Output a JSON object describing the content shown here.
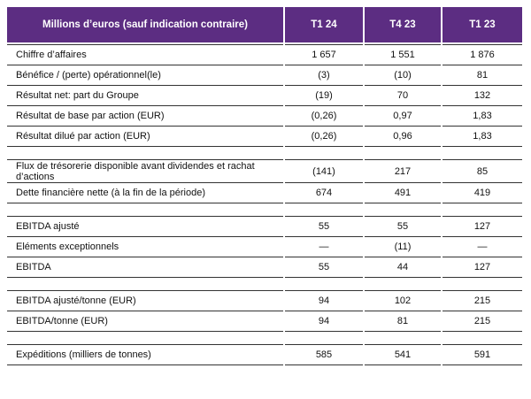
{
  "header": {
    "label": "Millions d’euros (sauf indication contraire)",
    "columns": [
      "T1 24",
      "T4 23",
      "T1 23"
    ]
  },
  "groups": [
    [
      [
        "Chiffre d’affaires",
        "1 657",
        "1 551",
        "1 876"
      ],
      [
        "Bénéfice / (perte) opérationnel(le)",
        "(3)",
        "(10)",
        "81"
      ],
      [
        "Résultat net: part du Groupe",
        "(19)",
        "70",
        "132"
      ],
      [
        "Résultat de base par action (EUR)",
        "(0,26)",
        "0,97",
        "1,83"
      ],
      [
        "Résultat dilué par action (EUR)",
        "(0,26)",
        "0,96",
        "1,83"
      ]
    ],
    [
      [
        "Flux de trésorerie disponible avant dividendes et rachat d’actions",
        "(141)",
        "217",
        "85"
      ],
      [
        "Dette financière nette (à la fin de la période)",
        "674",
        "491",
        "419"
      ]
    ],
    [
      [
        "EBITDA ajusté",
        "55",
        "55",
        "127"
      ],
      [
        "Eléments exceptionnels",
        "—",
        "(11)",
        "—"
      ],
      [
        "EBITDA",
        "55",
        "44",
        "127"
      ]
    ],
    [
      [
        "EBITDA ajusté/tonne (EUR)",
        "94",
        "102",
        "215"
      ],
      [
        "EBITDA/tonne (EUR)",
        "94",
        "81",
        "215"
      ]
    ],
    [
      [
        "Expéditions (milliers de tonnes)",
        "585",
        "541",
        "591"
      ]
    ]
  ]
}
